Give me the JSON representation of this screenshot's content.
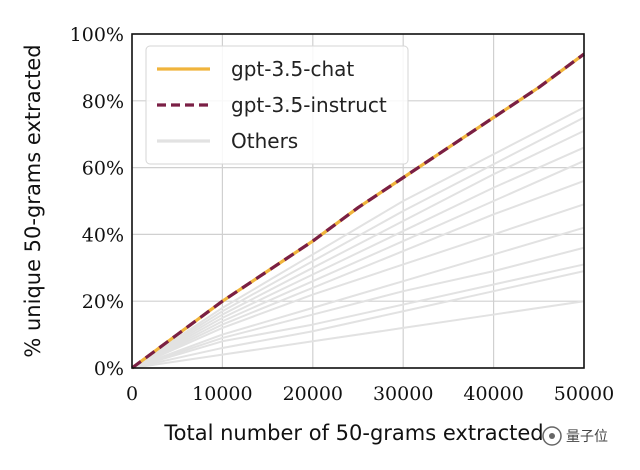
{
  "watermark": "量子位",
  "chart_data": {
    "type": "line",
    "xlabel": "Total number of 50-grams extracted",
    "ylabel": "% unique 50-grams extracted",
    "xlim": [
      0,
      50000
    ],
    "ylim": [
      0,
      100
    ],
    "x_ticks": [
      0,
      10000,
      20000,
      30000,
      40000,
      50000
    ],
    "x_tick_labels": [
      "0",
      "10000",
      "20000",
      "30000",
      "40000",
      "50000"
    ],
    "y_ticks": [
      0,
      20,
      40,
      60,
      80,
      100
    ],
    "y_tick_labels": [
      "0%",
      "20%",
      "40%",
      "60%",
      "80%",
      "100%"
    ],
    "grid": true,
    "legend_position": "top-left",
    "series": [
      {
        "name": "gpt-3.5-chat",
        "color": "#f0b43c",
        "style": "solid",
        "x": [
          0,
          5000,
          10000,
          15000,
          20000,
          25000,
          30000,
          35000,
          40000,
          45000,
          50000
        ],
        "y": [
          0,
          10,
          20,
          29,
          38,
          48,
          57,
          66,
          75,
          84,
          94
        ]
      },
      {
        "name": "gpt-3.5-instruct",
        "color": "#7a1f45",
        "style": "dashed",
        "x": [
          0,
          5000,
          10000,
          15000,
          20000,
          25000,
          30000,
          35000,
          40000,
          45000,
          50000
        ],
        "y": [
          0,
          10,
          20,
          29,
          38,
          48,
          57,
          66,
          75,
          84,
          94
        ]
      }
    ],
    "others": {
      "name": "Others",
      "color": "#e2e2e2",
      "x": [
        0,
        10000,
        20000,
        30000,
        40000,
        50000
      ],
      "lines": [
        [
          0,
          18,
          34,
          50,
          64,
          78
        ],
        [
          0,
          17,
          32,
          47,
          61,
          75
        ],
        [
          0,
          16,
          30,
          44,
          58,
          71
        ],
        [
          0,
          15,
          28,
          41,
          54,
          66
        ],
        [
          0,
          14,
          26,
          38,
          50,
          62
        ],
        [
          0,
          13,
          24,
          35,
          46,
          56
        ],
        [
          0,
          12,
          22,
          31,
          40,
          49
        ],
        [
          0,
          10,
          18,
          26,
          34,
          42
        ],
        [
          0,
          9,
          16,
          23,
          29,
          36
        ],
        [
          0,
          8,
          13,
          19,
          25,
          31
        ],
        [
          0,
          6,
          11,
          17,
          23,
          29
        ],
        [
          0,
          4,
          8,
          12,
          16,
          20
        ]
      ]
    }
  }
}
